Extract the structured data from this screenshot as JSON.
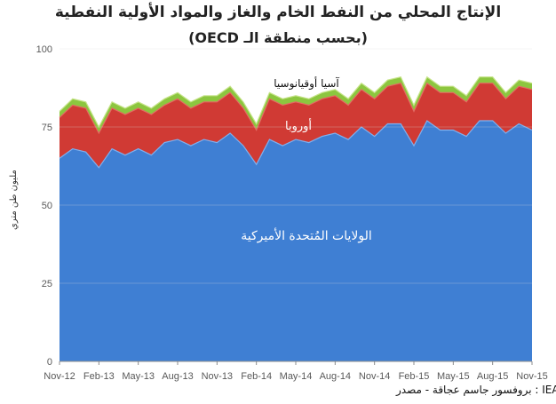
{
  "chart_data": {
    "type": "area",
    "stacked": true,
    "title": "الإنتاج المحلي من النفط الخام والغاز والمواد الأولية النفطية",
    "subtitle": "(بحسب منطقة الـ OECD)",
    "ylabel": "مليون طن متري",
    "xlabel": "",
    "ylim": [
      0,
      100
    ],
    "yticks": [
      0,
      25,
      50,
      75,
      100
    ],
    "grid": true,
    "legend": "labels-on-areas",
    "x_tick_labels": [
      "Nov-12",
      "Feb-13",
      "May-13",
      "Aug-13",
      "Nov-13",
      "Feb-14",
      "May-14",
      "Aug-14",
      "Nov-14",
      "Feb-15",
      "May-15",
      "Aug-15",
      "Nov-15"
    ],
    "x": [
      "Nov-12",
      "Dec-12",
      "Jan-13",
      "Feb-13",
      "Mar-13",
      "Apr-13",
      "May-13",
      "Jun-13",
      "Jul-13",
      "Aug-13",
      "Sep-13",
      "Oct-13",
      "Nov-13",
      "Dec-13",
      "Jan-14",
      "Feb-14",
      "Mar-14",
      "Apr-14",
      "May-14",
      "Jun-14",
      "Jul-14",
      "Aug-14",
      "Sep-14",
      "Oct-14",
      "Nov-14",
      "Dec-14",
      "Jan-15",
      "Feb-15",
      "Mar-15",
      "Apr-15",
      "May-15",
      "Jun-15",
      "Jul-15",
      "Aug-15",
      "Sep-15",
      "Oct-15",
      "Nov-15"
    ],
    "series": [
      {
        "name": "الولايات المُتحدة الأميركية",
        "color": "#3f7fd3",
        "values": [
          65,
          68,
          67,
          62,
          68,
          66,
          68,
          66,
          70,
          71,
          69,
          71,
          70,
          73,
          69,
          63,
          71,
          69,
          71,
          70,
          72,
          73,
          71,
          75,
          72,
          76,
          76,
          69,
          77,
          74,
          74,
          72,
          77,
          77,
          73,
          76,
          74
        ]
      },
      {
        "name": "أوروبا",
        "color": "#d03a34",
        "values": [
          13,
          14,
          14,
          11,
          13,
          13,
          13,
          13,
          12,
          13,
          12,
          12,
          13,
          13,
          12,
          11,
          13,
          13,
          12,
          12,
          12,
          12,
          11,
          12,
          12,
          12,
          13,
          11,
          12,
          12,
          12,
          11,
          12,
          12,
          11,
          12,
          13
        ]
      },
      {
        "name": "آسيا أوقيانوسيا",
        "color": "#8cc63f",
        "values": [
          2,
          2,
          2,
          2,
          2,
          2,
          2,
          2,
          2,
          2,
          2,
          2,
          2,
          2,
          2,
          2,
          2,
          2,
          2,
          2,
          2,
          2,
          2,
          2,
          2,
          2,
          2,
          2,
          2,
          2,
          2,
          2,
          2,
          2,
          2,
          2,
          2
        ]
      }
    ],
    "series_labels": {
      "usa": "الولايات المُتحدة الأميركية",
      "europe": "أوروبا",
      "asia": "آسيا أوقيانوسيا"
    }
  },
  "source_text": "IEA.org : بروفسور جاسم عجاقة - مصدر"
}
